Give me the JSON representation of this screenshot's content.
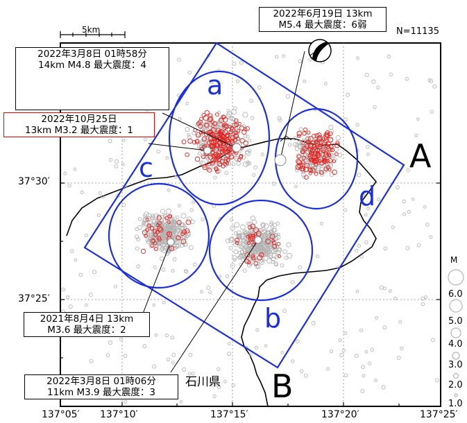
{
  "title_count": "N=11135",
  "scale_label": "5km",
  "callouts": [
    {
      "name": "callout-2022-06-19",
      "line1": "2022年6月19日 13km",
      "line2": "M5.4 最大震度：6弱",
      "border": "#000000"
    },
    {
      "name": "callout-2022-03-08-0158",
      "line1": "2022年3月8日 01時58分",
      "line2": "14km M4.8 最大震度：4",
      "border": "#000000"
    },
    {
      "name": "callout-2022-10-25",
      "line1": "2022年10月25日",
      "line2": "13km M3.2 最大震度：1",
      "border": "#e00000"
    },
    {
      "name": "callout-2021-08-04",
      "line1": "2021年8月4日 13km",
      "line2": "M3.6 最大震度：2",
      "border": "#000000"
    },
    {
      "name": "callout-2022-03-08-0106",
      "line1": "2022年3月8日 01時06分",
      "line2": "11km M3.9 最大震度：3",
      "border": "#000000"
    }
  ],
  "cross_section_labels": {
    "start": "A",
    "end": "B"
  },
  "regions": {
    "a": "a",
    "b": "b",
    "c": "c",
    "d": "d"
  },
  "prefecture_label": "石川県",
  "longitude_labels": [
    "137°05′",
    "137°10′",
    "137°15′",
    "137°20′",
    "137°25′"
  ],
  "latitude_labels": [
    "37°30′",
    "37°25′"
  ],
  "magnitude_legend": {
    "title": "M",
    "values": [
      "6.0",
      "5.0",
      "4.0",
      "3.0",
      "2.0",
      "1.0"
    ]
  },
  "colors": {
    "recent_events": "#e8201c",
    "older_events": "#b4b4b4",
    "regions": "#1a2ee0",
    "mainshock": "#ffffff"
  }
}
